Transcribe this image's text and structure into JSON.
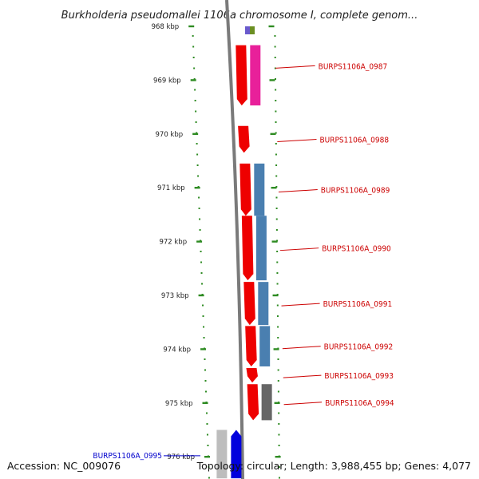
{
  "title": "Burkholderia pseudomallei 1106a chromosome I, complete genom...",
  "footer": {
    "accession": "Accession: NC_009076",
    "summary": "Topology: circular; Length: 3,988,455 bp; Genes: 4,077"
  },
  "scale": {
    "unit": "kbp",
    "ticks": [
      {
        "kbp": 968,
        "label": "968 kbp"
      },
      {
        "kbp": 969,
        "label": "969 kbp"
      },
      {
        "kbp": 970,
        "label": "970 kbp"
      },
      {
        "kbp": 971,
        "label": "971 kbp"
      },
      {
        "kbp": 972,
        "label": "972 kbp"
      },
      {
        "kbp": 973,
        "label": "973 kbp"
      },
      {
        "kbp": 974,
        "label": "974 kbp"
      },
      {
        "kbp": 975,
        "label": "975 kbp"
      },
      {
        "kbp": 976,
        "label": "976 kbp"
      }
    ]
  },
  "colors": {
    "gene_label": "#cc0000",
    "gene_label_selected": "#0000cc",
    "backbone": "#7a7a7a",
    "tick": "#2e8b22",
    "cds_red": "#ee0000",
    "cds_pink": "#e8209a",
    "cds_steel": "#4a7fb0",
    "cds_grey": "#666666",
    "cds_silver": "#bdbdbd",
    "cds_blue": "#0000dd",
    "cds_olive": "#6b8e23",
    "cds_purple": "#6a5acd"
  },
  "genes": [
    {
      "id": "BURPS1106A_0987",
      "start_kbp": 968.35,
      "end_kbp": 969.47,
      "strand": "-",
      "selected": false
    },
    {
      "id": "BURPS1106A_0988",
      "start_kbp": 969.85,
      "end_kbp": 970.35,
      "strand": "-",
      "selected": false
    },
    {
      "id": "BURPS1106A_0989",
      "start_kbp": 970.55,
      "end_kbp": 971.52,
      "strand": "-",
      "selected": false
    },
    {
      "id": "BURPS1106A_0990",
      "start_kbp": 971.52,
      "end_kbp": 972.72,
      "strand": "-",
      "selected": false
    },
    {
      "id": "BURPS1106A_0991",
      "start_kbp": 972.75,
      "end_kbp": 973.55,
      "strand": "-",
      "selected": false
    },
    {
      "id": "BURPS1106A_0992",
      "start_kbp": 973.57,
      "end_kbp": 974.32,
      "strand": "-",
      "selected": false
    },
    {
      "id": "BURPS1106A_0993",
      "start_kbp": 974.35,
      "end_kbp": 974.62,
      "strand": "-",
      "selected": false
    },
    {
      "id": "BURPS1106A_0994",
      "start_kbp": 974.65,
      "end_kbp": 975.32,
      "strand": "-",
      "selected": false
    },
    {
      "id": "BURPS1106A_0995",
      "start_kbp": 975.5,
      "end_kbp": 976.4,
      "strand": "-",
      "selected": true
    }
  ]
}
